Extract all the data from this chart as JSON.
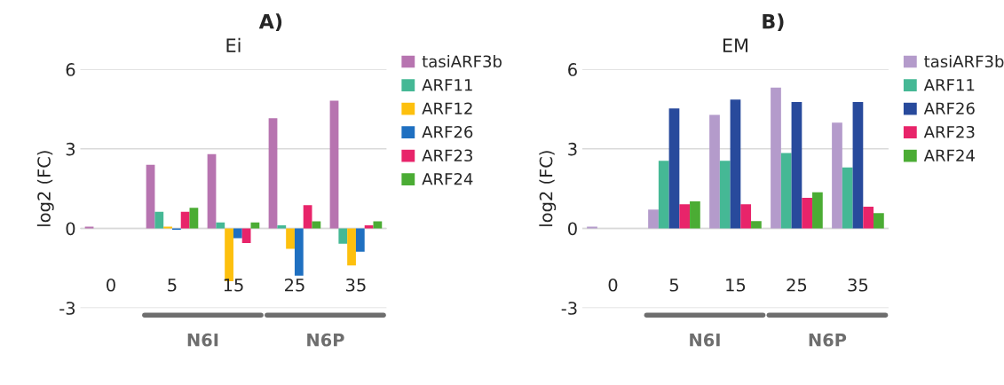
{
  "chart_data": [
    {
      "type": "bar",
      "title": "A)",
      "subtitle": "Ei",
      "ylabel": "log2 (FC)",
      "categories": [
        "0",
        "5",
        "15",
        "25",
        "35"
      ],
      "ylim": [
        -3,
        6
      ],
      "yticks": [
        -3,
        0,
        3,
        6
      ],
      "grid": "y",
      "legend": "right",
      "annotations": [
        "N6I",
        "N6P"
      ],
      "series": [
        {
          "name": "tasiARF3b",
          "color": "#b774b0",
          "values": [
            0.07,
            2.4,
            2.8,
            4.16,
            4.82
          ]
        },
        {
          "name": "ARF11",
          "color": "#45b895",
          "values": [
            null,
            0.63,
            0.23,
            0.12,
            -0.58
          ]
        },
        {
          "name": "ARF12",
          "color": "#fdc00e",
          "values": [
            null,
            0.07,
            -1.99,
            -0.77,
            -1.4
          ]
        },
        {
          "name": "ARF26",
          "color": "#1f70c1",
          "values": [
            null,
            -0.05,
            -0.37,
            -1.78,
            -0.88
          ]
        },
        {
          "name": "ARF23",
          "color": "#e8246a",
          "values": [
            null,
            0.63,
            -0.55,
            0.88,
            0.12
          ]
        },
        {
          "name": "ARF24",
          "color": "#4bac34",
          "values": [
            null,
            0.78,
            0.23,
            0.27,
            0.27
          ]
        }
      ]
    },
    {
      "type": "bar",
      "title": "B)",
      "subtitle": "EM",
      "ylabel": "log2 (FC)",
      "categories": [
        "0",
        "5",
        "15",
        "25",
        "35"
      ],
      "ylim": [
        -3,
        6
      ],
      "yticks": [
        -3,
        0,
        3,
        6
      ],
      "grid": "y",
      "legend": "right",
      "annotations": [
        "N6I",
        "N6P"
      ],
      "series": [
        {
          "name": "tasiARF3b",
          "color": "#b49bcb",
          "values": [
            0.07,
            0.71,
            4.28,
            5.31,
            3.99
          ]
        },
        {
          "name": "ARF11",
          "color": "#45b895",
          "values": [
            null,
            2.55,
            2.55,
            2.84,
            2.3
          ]
        },
        {
          "name": "ARF26",
          "color": "#284a9c",
          "values": [
            null,
            4.52,
            4.86,
            4.77,
            4.77
          ]
        },
        {
          "name": "ARF23",
          "color": "#e8246a",
          "values": [
            null,
            0.91,
            0.91,
            1.15,
            0.82
          ]
        },
        {
          "name": "ARF24",
          "color": "#4bac34",
          "values": [
            null,
            1.02,
            0.28,
            1.36,
            0.58
          ]
        }
      ]
    }
  ]
}
